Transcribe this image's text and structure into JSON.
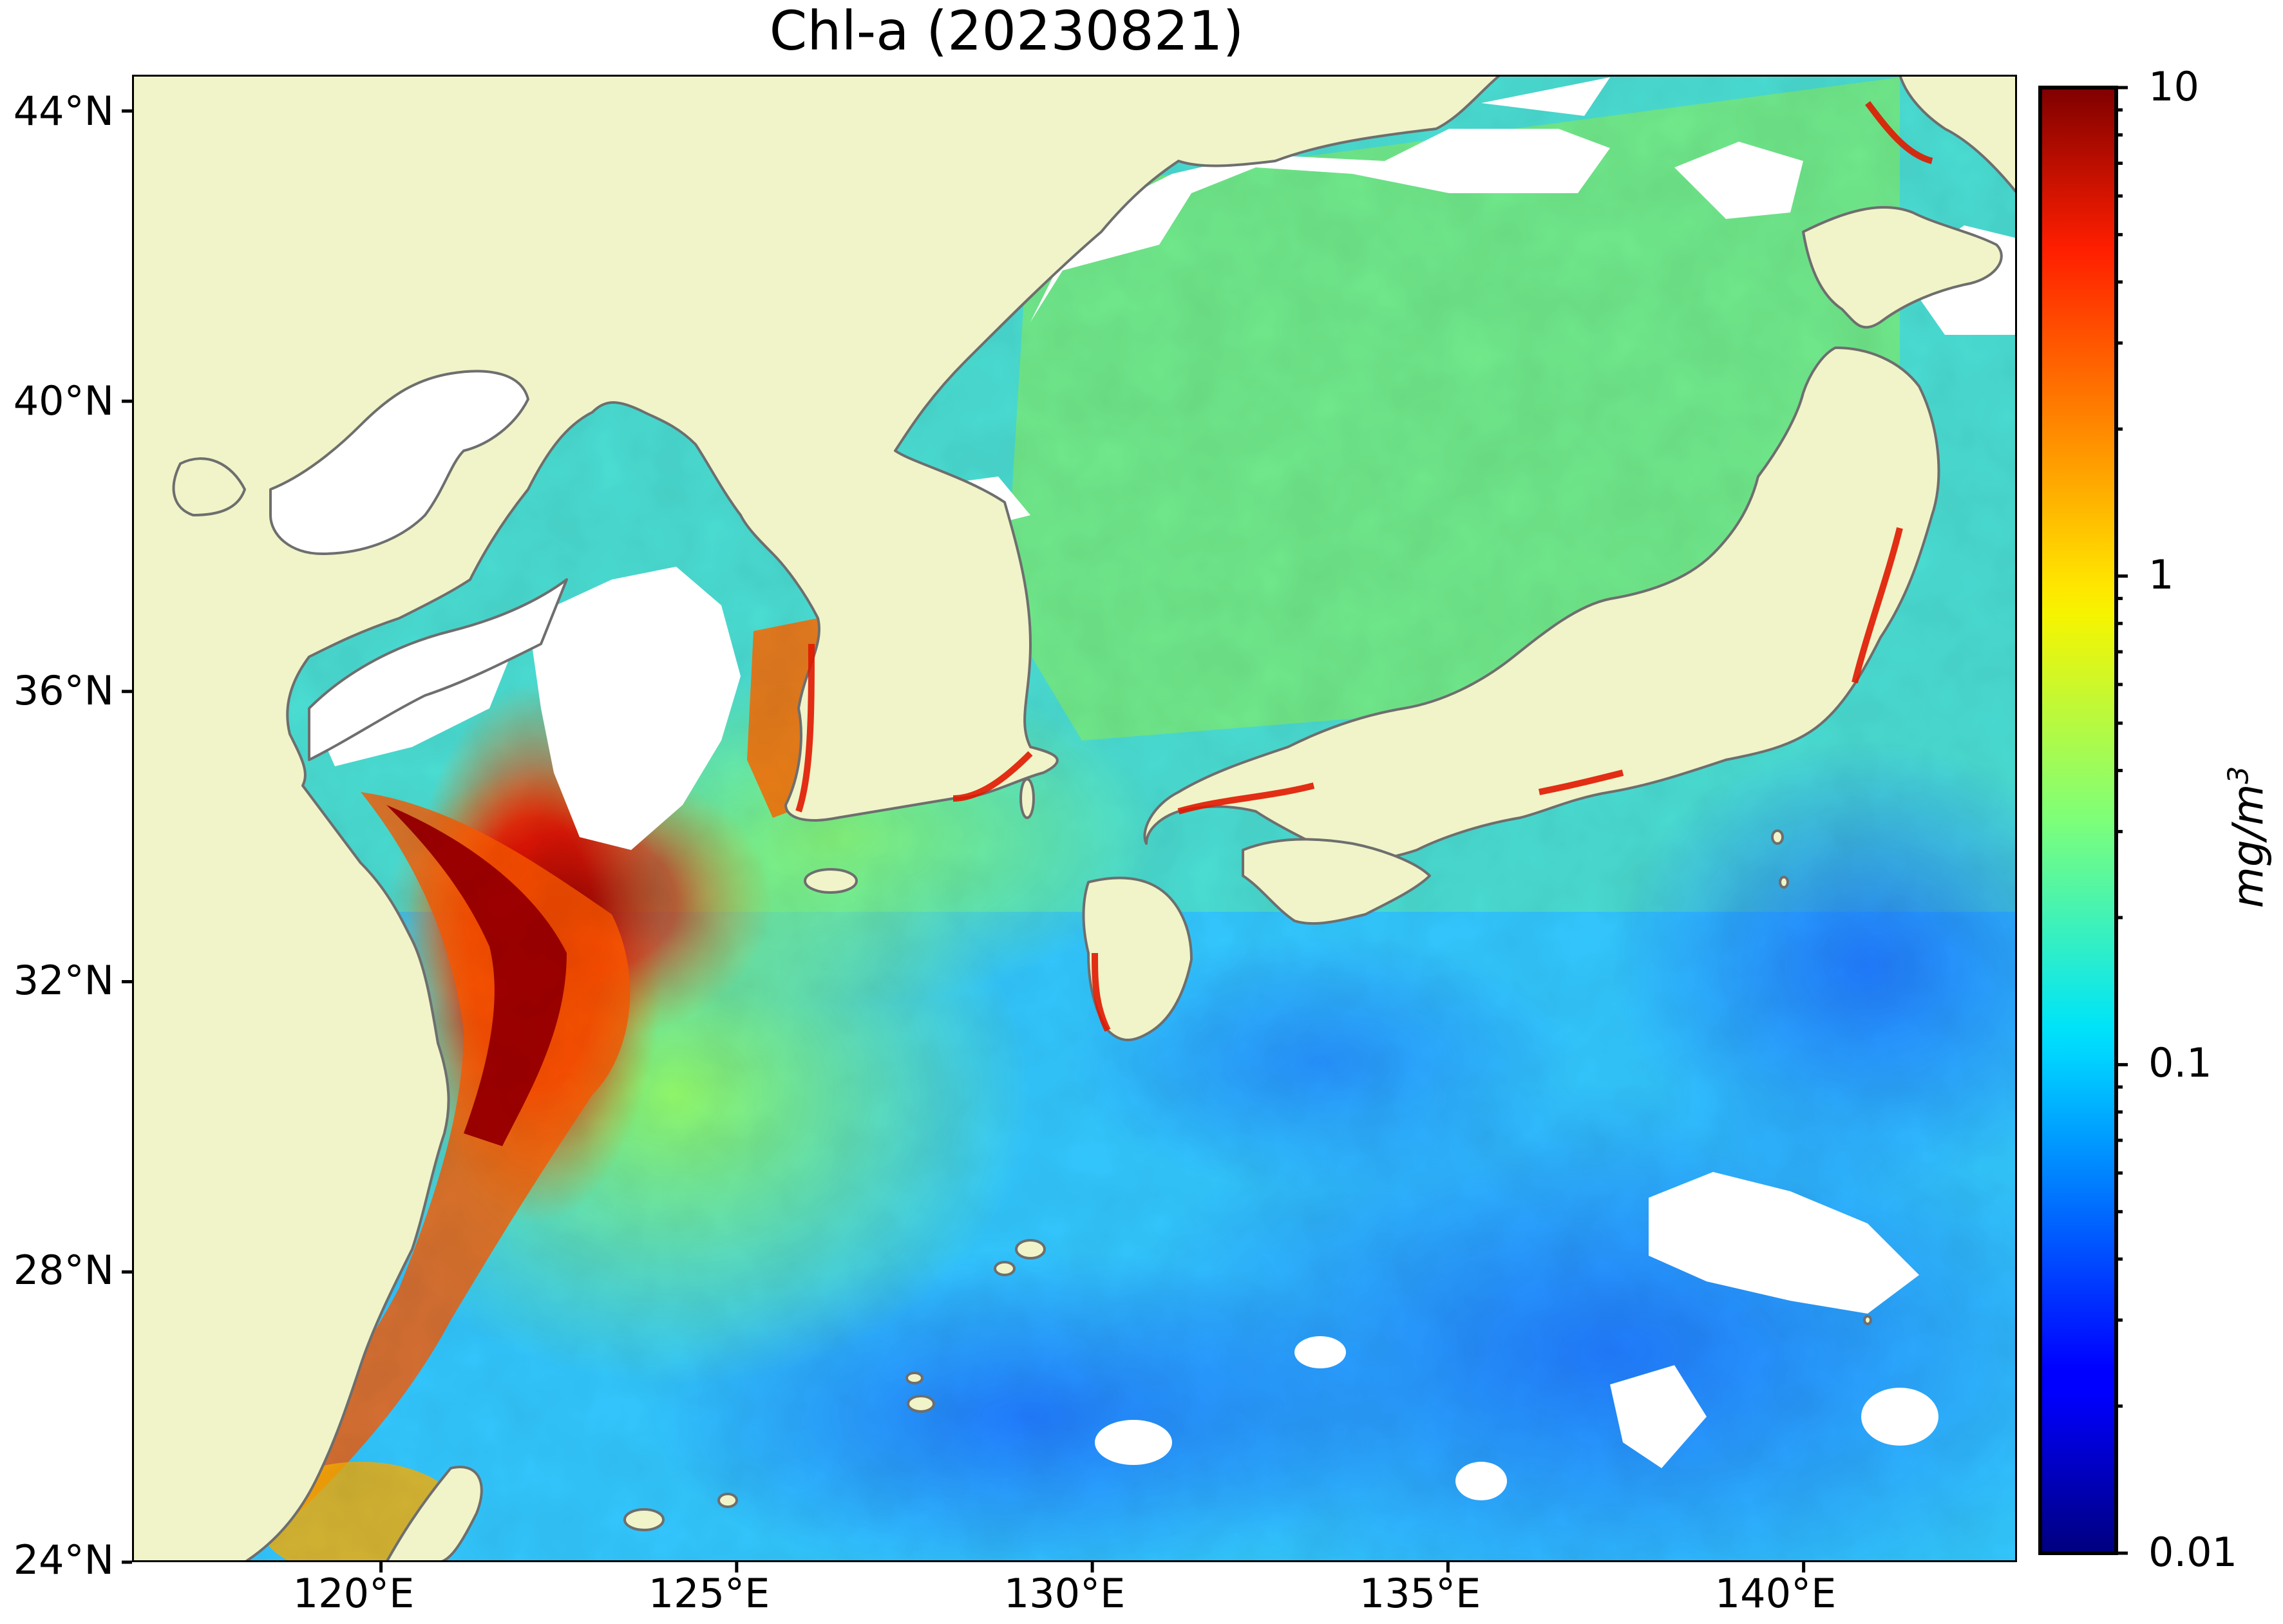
{
  "title": "Chl-a (20230821)",
  "map": {
    "region": "Yellow Sea, East China Sea, Sea of Japan and western North Pacific",
    "lon_range": [
      116.5,
      143.0
    ],
    "lat_range": [
      24.0,
      44.5
    ],
    "y_ticks": [
      "44°N",
      "40°N",
      "36°N",
      "32°N",
      "28°N",
      "24°N"
    ],
    "x_ticks": [
      "120°E",
      "125°E",
      "130°E",
      "135°E",
      "140°E"
    ],
    "colors": {
      "land": "#f0f4c8",
      "coastline": "#6e6e6e",
      "no_data": "#ffffff"
    }
  },
  "colorbar": {
    "label_main": "mg/m",
    "label_sup": "3",
    "scale": "log",
    "range": [
      0.01,
      10
    ],
    "colormap": "jet",
    "ticks": [
      "10",
      "1",
      "0.1",
      "0.01"
    ]
  }
}
